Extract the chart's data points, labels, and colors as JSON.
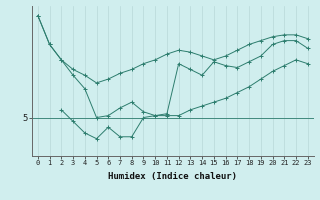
{
  "xlabel": "Humidex (Indice chaleur)",
  "background_color": "#d0eeee",
  "line_color": "#2d7d6e",
  "grid_color": "#b8d8d8",
  "ytick_labels": [
    "5"
  ],
  "ytick_values": [
    5
  ],
  "xlim": [
    -0.5,
    23.5
  ],
  "ylim": [
    3.0,
    10.8
  ],
  "x_ticks": [
    0,
    1,
    2,
    3,
    4,
    5,
    6,
    7,
    8,
    9,
    10,
    11,
    12,
    13,
    14,
    15,
    16,
    17,
    18,
    19,
    20,
    21,
    22,
    23
  ],
  "series1_x": [
    0,
    1,
    2,
    3,
    4,
    5,
    6,
    7,
    8,
    9,
    10,
    11,
    12,
    13,
    14,
    15,
    16,
    17,
    18,
    19,
    20,
    21,
    22,
    23
  ],
  "series1_y": [
    10.3,
    8.8,
    8.0,
    7.5,
    7.2,
    6.8,
    7.0,
    7.3,
    7.5,
    7.8,
    8.0,
    8.3,
    8.5,
    8.4,
    8.2,
    8.0,
    8.2,
    8.5,
    8.8,
    9.0,
    9.2,
    9.3,
    9.3,
    9.1
  ],
  "series2_x": [
    0,
    1,
    2,
    3,
    4,
    5,
    6,
    7,
    8,
    9,
    10,
    11,
    12,
    13,
    14,
    15,
    16,
    17,
    18,
    19,
    20,
    21,
    22,
    23
  ],
  "series2_y": [
    10.3,
    8.8,
    8.0,
    7.2,
    6.5,
    5.0,
    5.1,
    5.5,
    5.8,
    5.3,
    5.1,
    5.2,
    7.8,
    7.5,
    7.2,
    7.9,
    7.7,
    7.6,
    7.9,
    8.2,
    8.8,
    9.0,
    9.0,
    8.6
  ],
  "series3_x": [
    2,
    3,
    4,
    5,
    6,
    7,
    8,
    9,
    10,
    11,
    12,
    13,
    14,
    15,
    16,
    17,
    18,
    19,
    20,
    21,
    22,
    23
  ],
  "series3_y": [
    5.4,
    4.8,
    4.2,
    3.9,
    4.5,
    4.0,
    4.0,
    5.0,
    5.1,
    5.1,
    5.1,
    5.4,
    5.6,
    5.8,
    6.0,
    6.3,
    6.6,
    7.0,
    7.4,
    7.7,
    8.0,
    7.8
  ],
  "hline_y": 5.0,
  "marker": "+"
}
